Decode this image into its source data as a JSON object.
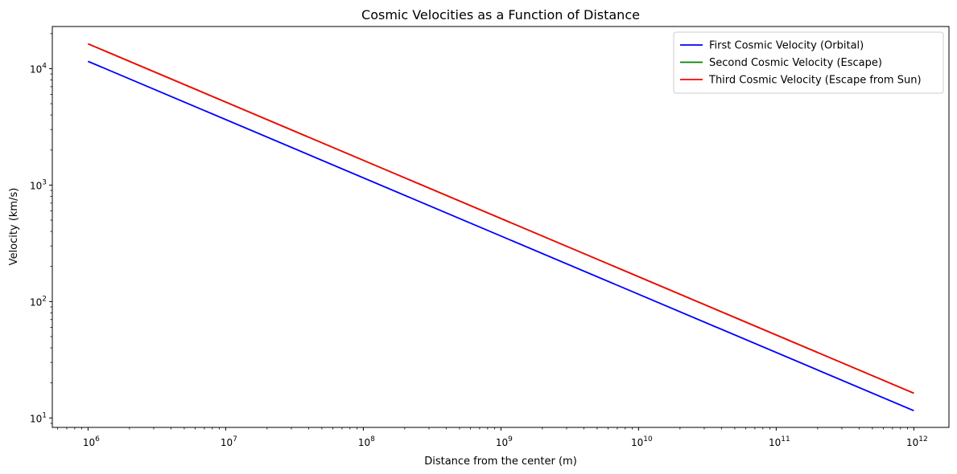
{
  "chart_data": {
    "type": "line",
    "title": "Cosmic Velocities as a Function of Distance",
    "xlabel": "Distance from the center (m)",
    "ylabel": "Velocity (km/s)",
    "xscale": "log",
    "yscale": "log",
    "xlim": [
      550000,
      1800000000000
    ],
    "ylim": [
      8.3,
      23000
    ],
    "x_ticks": [
      {
        "value": 1000000,
        "base": "10",
        "exp": "6"
      },
      {
        "value": 10000000,
        "base": "10",
        "exp": "7"
      },
      {
        "value": 100000000,
        "base": "10",
        "exp": "8"
      },
      {
        "value": 1000000000,
        "base": "10",
        "exp": "9"
      },
      {
        "value": 10000000000,
        "base": "10",
        "exp": "10"
      },
      {
        "value": 100000000000,
        "base": "10",
        "exp": "11"
      },
      {
        "value": 1000000000000,
        "base": "10",
        "exp": "12"
      }
    ],
    "y_ticks": [
      {
        "value": 10,
        "base": "10",
        "exp": "1"
      },
      {
        "value": 100,
        "base": "10",
        "exp": "2"
      },
      {
        "value": 1000,
        "base": "10",
        "exp": "3"
      },
      {
        "value": 10000,
        "base": "10",
        "exp": "4"
      }
    ],
    "grid": false,
    "legend_position": "top-right",
    "series": [
      {
        "name": "First Cosmic Velocity (Orbital)",
        "color": "#0000ff",
        "x": [
          1000000,
          1000000000000
        ],
        "y": [
          11550,
          11.55
        ]
      },
      {
        "name": "Second Cosmic Velocity (Escape)",
        "color": "#008000",
        "x": [
          1000000,
          1000000000000
        ],
        "y": [
          16330,
          16.33
        ]
      },
      {
        "name": "Third Cosmic Velocity (Escape from Sun)",
        "color": "#ff0000",
        "x": [
          1000000,
          1000000000000
        ],
        "y": [
          16330,
          16.33
        ]
      }
    ]
  }
}
